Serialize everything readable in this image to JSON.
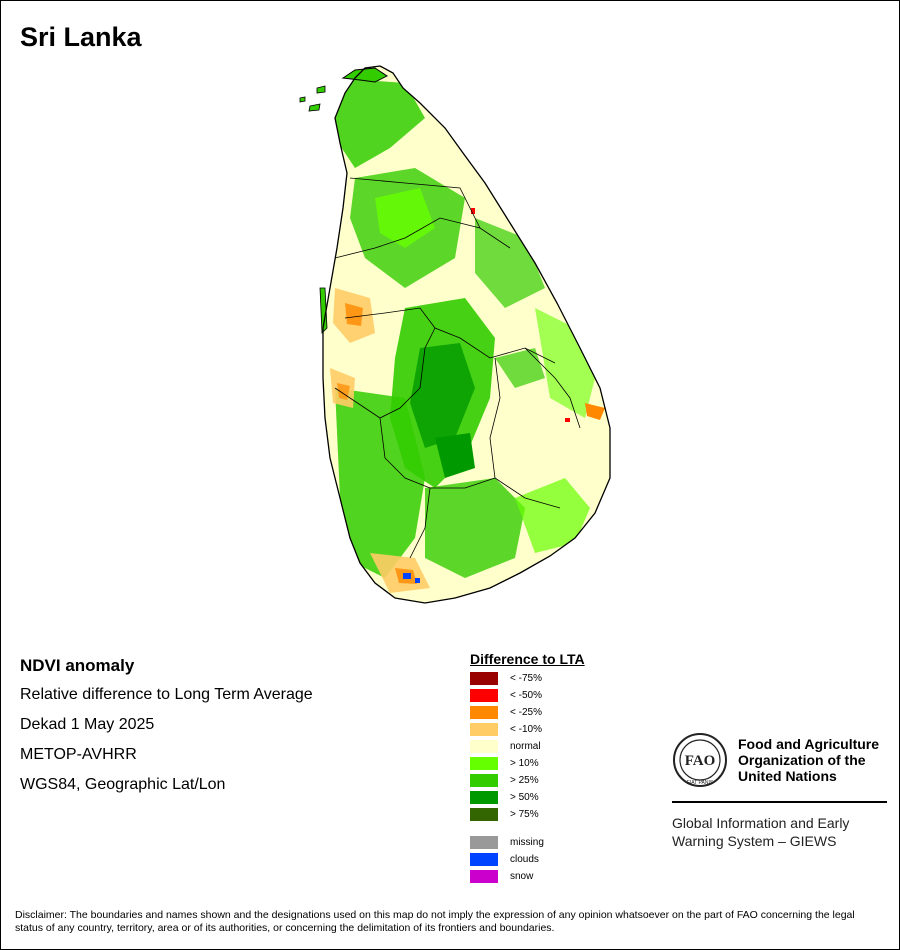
{
  "map": {
    "title": "Sri Lanka"
  },
  "info": {
    "heading": "NDVI anomaly",
    "lines": [
      "Relative difference to Long Term Average",
      "Dekad 1 May 2025",
      "METOP-AVHRR",
      "WGS84, Geographic Lat/Lon"
    ]
  },
  "legend": {
    "title": "Difference to LTA",
    "items": [
      {
        "label": "< -75%",
        "color": "#990000"
      },
      {
        "label": "< -50%",
        "color": "#ff0000"
      },
      {
        "label": "< -25%",
        "color": "#ff8800"
      },
      {
        "label": "< -10%",
        "color": "#ffcc66"
      },
      {
        "label": "normal",
        "color": "#ffffcc"
      },
      {
        "label": "> 10%",
        "color": "#66ff00"
      },
      {
        "label": "> 25%",
        "color": "#33cc00"
      },
      {
        "label": "> 50%",
        "color": "#009900"
      },
      {
        "label": "> 75%",
        "color": "#336600"
      },
      {
        "label": "missing",
        "color": "#999999"
      },
      {
        "label": "clouds",
        "color": "#0044ff"
      },
      {
        "label": "snow",
        "color": "#cc00cc"
      }
    ]
  },
  "fao": {
    "name_lines": [
      "Food and Agriculture",
      "Organization of the",
      "United Nations"
    ],
    "giews_lines": [
      "Global Information and Early",
      "Warning System – GIEWS"
    ],
    "logo_text": "FIAT PANIS"
  },
  "disclaimer": "Disclaimer: The boundaries and names shown and the designations used on this map do not imply the expression of any opinion whatsoever on the part of FAO concerning the legal status of any country, territory, area or of its authorities, or concerning the delimitation of its frontiers and boundaries."
}
